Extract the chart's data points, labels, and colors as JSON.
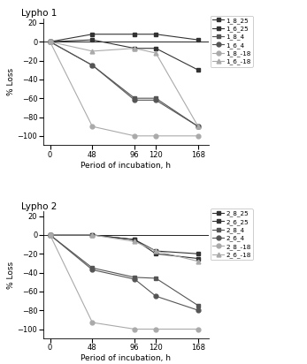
{
  "x": [
    0,
    48,
    96,
    120,
    168
  ],
  "lypho1": {
    "title": "Lypho 1",
    "series": {
      "1_8_25": [
        0,
        8,
        8,
        8,
        2
      ],
      "1_6_25": [
        0,
        2,
        -7,
        -7,
        -30
      ],
      "1_8_4": [
        0,
        -25,
        -60,
        -60,
        -90
      ],
      "1_6_4": [
        0,
        -25,
        -62,
        -62,
        -90
      ],
      "1_8_-18": [
        0,
        -90,
        -100,
        -100,
        -100
      ],
      "1_6_-18": [
        0,
        -10,
        -7,
        -12,
        -90
      ]
    }
  },
  "lypho2": {
    "title": "Lypho 2",
    "series": {
      "2_8_25": [
        0,
        0,
        -5,
        -17,
        -20
      ],
      "2_6_25": [
        0,
        0,
        -5,
        -20,
        -25
      ],
      "2_8_4": [
        0,
        -35,
        -45,
        -46,
        -75
      ],
      "2_6_4": [
        0,
        -37,
        -47,
        -65,
        -80
      ],
      "2_8_-18": [
        0,
        -93,
        -100,
        -100,
        -100
      ],
      "2_6_-18": [
        0,
        0,
        -7,
        -17,
        -28
      ]
    }
  },
  "styles": {
    "1_8_25": {
      "color": "#333333",
      "marker": "s",
      "ms": 3.5,
      "lw": 0.8
    },
    "1_6_25": {
      "color": "#333333",
      "marker": "s",
      "ms": 3.5,
      "lw": 0.8
    },
    "1_8_4": {
      "color": "#555555",
      "marker": "s",
      "ms": 3.5,
      "lw": 0.8
    },
    "1_6_4": {
      "color": "#555555",
      "marker": "o",
      "ms": 3.5,
      "lw": 0.8
    },
    "1_8_-18": {
      "color": "#aaaaaa",
      "marker": "o",
      "ms": 3.5,
      "lw": 0.8
    },
    "1_6_-18": {
      "color": "#aaaaaa",
      "marker": "^",
      "ms": 3.5,
      "lw": 0.8
    },
    "2_8_25": {
      "color": "#333333",
      "marker": "s",
      "ms": 3.5,
      "lw": 0.8
    },
    "2_6_25": {
      "color": "#333333",
      "marker": "s",
      "ms": 3.5,
      "lw": 0.8
    },
    "2_8_4": {
      "color": "#555555",
      "marker": "s",
      "ms": 3.5,
      "lw": 0.8
    },
    "2_6_4": {
      "color": "#555555",
      "marker": "o",
      "ms": 3.5,
      "lw": 0.8
    },
    "2_8_-18": {
      "color": "#aaaaaa",
      "marker": "o",
      "ms": 3.5,
      "lw": 0.8
    },
    "2_6_-18": {
      "color": "#aaaaaa",
      "marker": "^",
      "ms": 3.5,
      "lw": 0.8
    }
  },
  "ylabel": "% Loss",
  "xlabel": "Period of incubation, h",
  "ylim": [
    -110,
    25
  ],
  "yticks": [
    20,
    0,
    -20,
    -40,
    -60,
    -80,
    -100
  ],
  "xticks": [
    0,
    48,
    96,
    120,
    168
  ],
  "background": "#ffffff"
}
